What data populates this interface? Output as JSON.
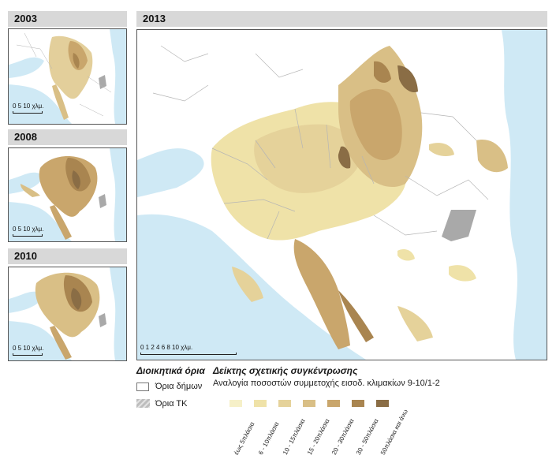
{
  "panels": {
    "p2003": {
      "year": "2003",
      "scale_label": "0  5  10 χλμ."
    },
    "p2008": {
      "year": "2008",
      "scale_label": "0  5  10 χλμ."
    },
    "p2010": {
      "year": "2010",
      "scale_label": "0  5  10 χλμ."
    },
    "p2013": {
      "year": "2013",
      "scale_label": "0  1  2   4    6    8   10 χλμ."
    }
  },
  "legend": {
    "admin_heading": "Διοικητικά όρια",
    "municipal_boundaries": "Όρια δήμων",
    "tk_boundaries": "Όρια ΤΚ",
    "index_heading": "Δείκτης σχετικής συγκέντρωσης",
    "index_subtitle": "Αναλογία ποσοστών συμμετοχής εισοδ. κλιμακίων 9-10/1-2",
    "classes": [
      {
        "label": "έως 5πλάσια",
        "color": "#f6f0c8"
      },
      {
        "label": "6 - 10πλάσια",
        "color": "#efe2a8"
      },
      {
        "label": "10 - 15πλάσια",
        "color": "#e5d29a"
      },
      {
        "label": "15 - 20πλάσια",
        "color": "#d9bf86"
      },
      {
        "label": "20 - 30πλάσια",
        "color": "#c9a66c"
      },
      {
        "label": "30 - 50πλάσια",
        "color": "#a98550"
      },
      {
        "label": "50πλάσια και άνω",
        "color": "#8a6d45"
      }
    ]
  },
  "colors": {
    "sea": "#cfe9f5",
    "land": "#ffffff",
    "boundary": "#b5b5b5",
    "tk": "#a9a9a9"
  }
}
